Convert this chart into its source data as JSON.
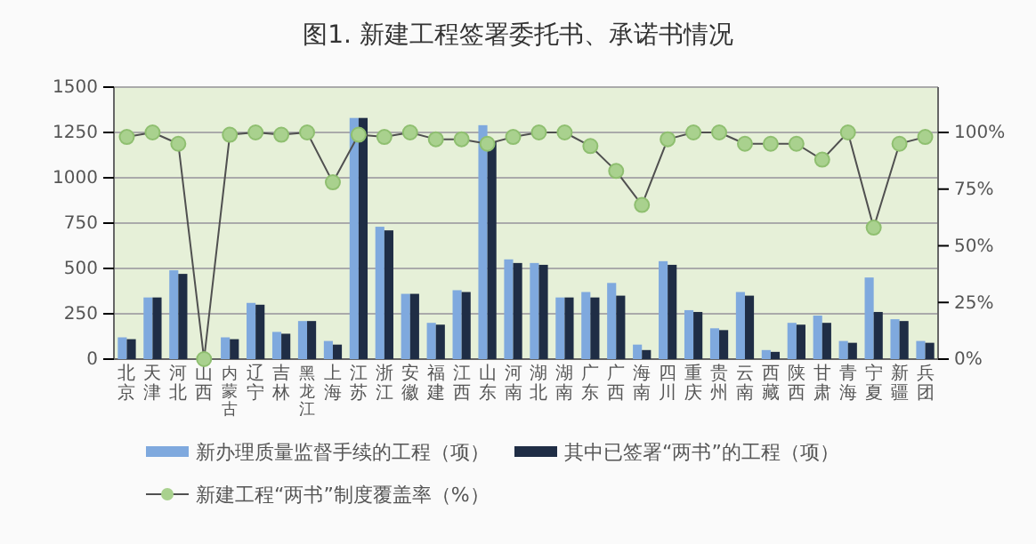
{
  "chart_data": {
    "type": "bar",
    "title": "图1. 新建工程签署委托书、承诺书情况",
    "categories": [
      "北京",
      "天津",
      "河北",
      "山西",
      "内蒙古",
      "辽宁",
      "吉林",
      "黑龙江",
      "上海",
      "江苏",
      "浙江",
      "安徽",
      "福建",
      "江西",
      "山东",
      "河南",
      "湖北",
      "湖南",
      "广东",
      "广西",
      "海南",
      "四川",
      "重庆",
      "贵州",
      "云南",
      "西藏",
      "陕西",
      "甘肃",
      "青海",
      "宁夏",
      "新疆",
      "兵团"
    ],
    "series": [
      {
        "name": "新办理质量监督手续的工程（项）",
        "color": "#7fa9de",
        "values": [
          120,
          340,
          490,
          0,
          120,
          310,
          150,
          210,
          100,
          1330,
          730,
          360,
          200,
          380,
          1290,
          550,
          530,
          340,
          370,
          420,
          80,
          540,
          270,
          170,
          370,
          50,
          200,
          240,
          100,
          450,
          220,
          100
        ]
      },
      {
        "name": "其中已签署“两书”的工程（项）",
        "color": "#1f2d45",
        "values": [
          110,
          340,
          470,
          0,
          110,
          300,
          140,
          210,
          80,
          1330,
          710,
          360,
          190,
          370,
          1200,
          530,
          520,
          340,
          340,
          350,
          50,
          520,
          260,
          160,
          350,
          40,
          190,
          200,
          90,
          260,
          210,
          90
        ]
      },
      {
        "name": "新建工程“两书”制度覆盖率（%）",
        "type": "line",
        "axis": "y2",
        "color": "#505050",
        "values": [
          98,
          100,
          95,
          0,
          99,
          100,
          99,
          100,
          78,
          99,
          98,
          100,
          97,
          97,
          95,
          98,
          100,
          100,
          94,
          83,
          68,
          97,
          100,
          100,
          95,
          95,
          95,
          88,
          100,
          58,
          95,
          98
        ]
      }
    ],
    "ylim": [
      0,
      1500
    ],
    "yticks": [
      0,
      250,
      500,
      750,
      1000,
      1250,
      1500
    ],
    "y2lim": [
      0,
      120
    ],
    "y2ticks": [
      {
        "value": 0,
        "label": "0%"
      },
      {
        "value": 25,
        "label": "25%"
      },
      {
        "value": 50,
        "label": "50%"
      },
      {
        "value": 75,
        "label": "75%"
      },
      {
        "value": 100,
        "label": "100%"
      }
    ],
    "grid": "y",
    "legend": "bottom",
    "marker": "circle"
  }
}
